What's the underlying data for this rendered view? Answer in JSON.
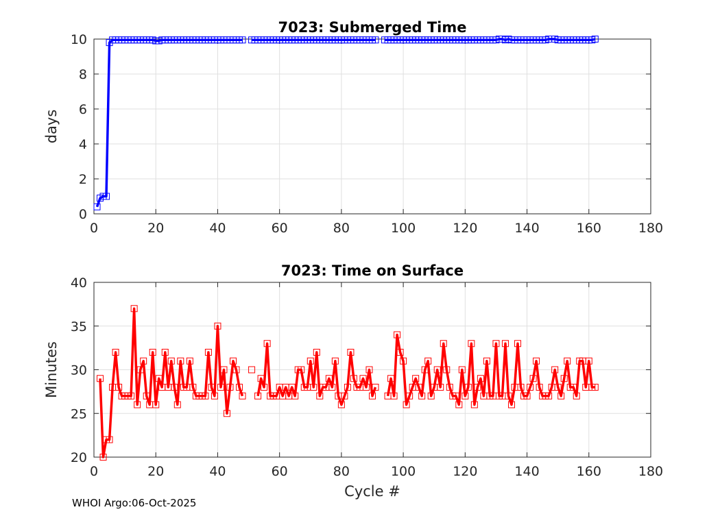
{
  "footer": "WHOI Argo:06-Oct-2025",
  "chart_data": [
    {
      "type": "line",
      "title": "7023: Submerged Time",
      "xlabel": "",
      "ylabel": "days",
      "xlim": [
        0,
        180
      ],
      "ylim": [
        0,
        10
      ],
      "xticks": [
        0,
        20,
        40,
        60,
        80,
        100,
        120,
        140,
        160,
        180
      ],
      "yticks": [
        0,
        2,
        4,
        6,
        8,
        10
      ],
      "grid": true,
      "color": "#0000ff",
      "marker": "square",
      "x": [
        1,
        2,
        3,
        4,
        5,
        6,
        7,
        8,
        9,
        10,
        11,
        12,
        13,
        14,
        15,
        16,
        17,
        18,
        19,
        20,
        21,
        22,
        23,
        24,
        25,
        26,
        27,
        28,
        29,
        30,
        31,
        32,
        33,
        34,
        35,
        36,
        37,
        38,
        39,
        40,
        41,
        42,
        43,
        44,
        45,
        46,
        47,
        48,
        null,
        51,
        52,
        53,
        54,
        55,
        56,
        57,
        58,
        59,
        60,
        61,
        62,
        63,
        64,
        65,
        66,
        67,
        68,
        69,
        70,
        71,
        72,
        73,
        74,
        75,
        76,
        77,
        78,
        79,
        80,
        81,
        82,
        83,
        84,
        85,
        86,
        87,
        88,
        89,
        90,
        91,
        null,
        94,
        95,
        96,
        97,
        98,
        99,
        100,
        101,
        102,
        103,
        104,
        105,
        106,
        107,
        108,
        109,
        110,
        111,
        112,
        113,
        114,
        115,
        116,
        117,
        118,
        119,
        120,
        121,
        122,
        123,
        124,
        125,
        126,
        127,
        128,
        129,
        130,
        131,
        132,
        133,
        134,
        135,
        136,
        137,
        138,
        139,
        140,
        141,
        142,
        143,
        144,
        145,
        146,
        147,
        148,
        149,
        150,
        151,
        152,
        153,
        154,
        155,
        156,
        157,
        158,
        159,
        160,
        161,
        162
      ],
      "y": [
        0.4,
        0.9,
        1.0,
        1.0,
        9.8,
        9.95,
        9.95,
        9.95,
        9.95,
        9.95,
        9.95,
        9.95,
        9.95,
        9.95,
        9.95,
        9.95,
        9.95,
        9.95,
        9.95,
        9.9,
        9.9,
        9.95,
        9.95,
        9.95,
        9.95,
        9.95,
        9.95,
        9.95,
        9.95,
        9.95,
        9.95,
        9.95,
        9.95,
        9.95,
        9.95,
        9.95,
        9.95,
        9.95,
        9.95,
        9.95,
        9.95,
        9.95,
        9.95,
        9.95,
        9.95,
        9.95,
        9.95,
        9.95,
        null,
        9.95,
        9.95,
        9.95,
        9.95,
        9.95,
        9.95,
        9.95,
        9.95,
        9.95,
        9.95,
        9.95,
        9.95,
        9.95,
        9.95,
        9.95,
        9.95,
        9.95,
        9.95,
        9.95,
        9.95,
        9.95,
        9.95,
        9.95,
        9.95,
        9.95,
        9.95,
        9.95,
        9.95,
        9.95,
        9.95,
        9.95,
        9.95,
        9.95,
        9.95,
        9.95,
        9.95,
        9.95,
        9.95,
        9.95,
        9.95,
        9.95,
        null,
        9.95,
        9.95,
        9.95,
        9.95,
        9.95,
        9.95,
        9.95,
        9.95,
        9.95,
        9.95,
        9.95,
        9.95,
        9.95,
        9.95,
        9.95,
        9.95,
        9.95,
        9.95,
        9.95,
        9.95,
        9.95,
        9.95,
        9.95,
        9.95,
        9.95,
        9.95,
        9.95,
        9.95,
        9.95,
        9.95,
        9.95,
        9.95,
        9.95,
        9.95,
        9.95,
        9.95,
        9.95,
        10.0,
        10.0,
        9.95,
        10.0,
        9.95,
        9.95,
        9.95,
        9.95,
        9.95,
        9.95,
        9.95,
        9.95,
        9.95,
        9.95,
        9.95,
        9.95,
        10.0,
        10.0,
        10.0,
        9.95,
        9.95,
        9.95,
        9.95,
        9.95,
        9.95,
        9.95,
        9.95,
        9.95,
        9.95,
        9.95,
        9.95,
        10.0
      ]
    },
    {
      "type": "line",
      "title": "7023: Time on Surface",
      "xlabel": "Cycle #",
      "ylabel": "Minutes",
      "xlim": [
        0,
        180
      ],
      "ylim": [
        20,
        40
      ],
      "xticks": [
        0,
        20,
        40,
        60,
        80,
        100,
        120,
        140,
        160,
        180
      ],
      "yticks": [
        20,
        25,
        30,
        35,
        40
      ],
      "grid": true,
      "color": "#ff0000",
      "marker": "square",
      "x": [
        2,
        3,
        4,
        5,
        6,
        7,
        8,
        9,
        10,
        11,
        12,
        13,
        14,
        15,
        16,
        17,
        18,
        19,
        20,
        21,
        22,
        23,
        24,
        25,
        26,
        27,
        28,
        29,
        30,
        31,
        32,
        33,
        34,
        35,
        36,
        37,
        38,
        39,
        40,
        41,
        42,
        43,
        44,
        45,
        46,
        47,
        48,
        51,
        53,
        54,
        55,
        56,
        57,
        58,
        59,
        60,
        61,
        62,
        63,
        64,
        65,
        66,
        67,
        68,
        69,
        70,
        71,
        72,
        73,
        74,
        75,
        76,
        77,
        78,
        79,
        80,
        81,
        82,
        83,
        84,
        85,
        86,
        87,
        88,
        89,
        90,
        91,
        95,
        96,
        97,
        98,
        99,
        100,
        101,
        102,
        103,
        104,
        105,
        106,
        107,
        108,
        109,
        110,
        111,
        112,
        113,
        114,
        115,
        116,
        117,
        118,
        119,
        120,
        121,
        122,
        123,
        124,
        125,
        126,
        127,
        128,
        129,
        130,
        131,
        132,
        133,
        134,
        135,
        136,
        137,
        138,
        139,
        140,
        141,
        142,
        143,
        144,
        145,
        146,
        147,
        148,
        149,
        150,
        151,
        152,
        153,
        154,
        155,
        156,
        157,
        158,
        159,
        160,
        161,
        162
      ],
      "y": [
        29,
        20,
        22,
        22,
        28,
        32,
        28,
        27,
        27,
        27,
        27,
        37,
        26,
        30,
        31,
        27,
        26,
        32,
        26,
        29,
        28,
        32,
        28,
        31,
        28,
        26,
        31,
        28,
        28,
        31,
        28,
        27,
        27,
        27,
        27,
        32,
        28,
        27,
        35,
        28,
        30,
        25,
        28,
        31,
        30,
        28,
        27,
        30,
        27,
        29,
        28,
        33,
        27,
        27,
        27,
        28,
        27,
        28,
        27,
        28,
        27,
        30,
        30,
        28,
        28,
        31,
        28,
        32,
        27,
        28,
        28,
        29,
        28,
        31,
        27,
        26,
        27,
        28,
        32,
        29,
        28,
        28,
        29,
        28,
        30,
        27,
        28,
        27,
        29,
        27,
        34,
        32,
        31,
        26,
        27,
        28,
        29,
        28,
        27,
        30,
        31,
        27,
        28,
        30,
        28,
        33,
        30,
        28,
        27,
        27,
        26,
        30,
        27,
        28,
        33,
        26,
        28,
        29,
        27,
        31,
        27,
        27,
        33,
        27,
        27,
        33,
        27,
        26,
        28,
        33,
        28,
        27,
        27,
        28,
        29,
        31,
        28,
        27,
        27,
        27,
        28,
        30,
        28,
        27,
        29,
        31,
        28,
        28,
        27,
        31,
        31,
        28,
        31,
        28,
        28
      ]
    }
  ]
}
